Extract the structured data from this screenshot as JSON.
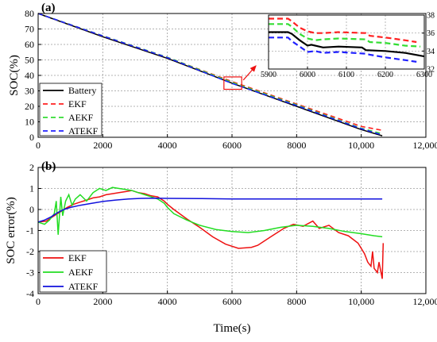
{
  "chart_data": [
    {
      "panel_label": "(a)",
      "type": "line",
      "ylabel": "SOC(%)",
      "xlim": [
        0,
        12000
      ],
      "ylim": [
        0,
        80
      ],
      "x_ticks": [
        "0",
        "2000",
        "4000",
        "6000",
        "8000",
        "10,000",
        "12,000"
      ],
      "y_ticks": [
        "0",
        "10",
        "20",
        "30",
        "40",
        "50",
        "60",
        "70",
        "80"
      ],
      "grid": true,
      "legend_position": "bottom-left",
      "series": [
        {
          "name": "Battery",
          "color": "#000000",
          "dash": "solid",
          "x": [
            0,
            2000,
            4000,
            6000,
            8000,
            10000,
            10650
          ],
          "y": [
            80,
            65,
            51,
            35,
            20,
            5,
            1
          ]
        },
        {
          "name": "EKF",
          "color": "#ff2020",
          "dash": "dashed",
          "x": [
            0,
            2000,
            4000,
            6000,
            8000,
            10000,
            10650
          ],
          "y": [
            80,
            65.5,
            51.6,
            36,
            21.5,
            7,
            4.5
          ]
        },
        {
          "name": "AEKF",
          "color": "#33dd33",
          "dash": "dashed",
          "x": [
            0,
            2000,
            4000,
            6000,
            8000,
            10000,
            10650
          ],
          "y": [
            80,
            65.6,
            51.7,
            35.5,
            21,
            5.8,
            2.3
          ]
        },
        {
          "name": "ATEKF",
          "color": "#2020ff",
          "dash": "dashed",
          "x": [
            0,
            2000,
            4000,
            6000,
            8000,
            10000,
            10650
          ],
          "y": [
            80,
            65.5,
            51.5,
            34.8,
            20.5,
            5.5,
            1.5
          ]
        }
      ],
      "zoom_box": {
        "x": [
          5750,
          6300
        ],
        "y": [
          31,
          39
        ]
      },
      "inset": {
        "xlim": [
          5900,
          6300
        ],
        "ylim": [
          32,
          38
        ],
        "x_ticks": [
          "5900",
          "6000",
          "6100",
          "6200",
          "6300"
        ],
        "y_ticks": [
          "32",
          "34",
          "36",
          "38"
        ],
        "series": [
          {
            "name": "Battery",
            "color": "#000000",
            "dash": "solid",
            "x": [
              5900,
              5950,
              5960,
              5980,
              6000,
              6010,
              6040,
              6080,
              6140,
              6150,
              6200,
              6250,
              6300
            ],
            "y": [
              36.1,
              36.1,
              35.9,
              35.2,
              34.6,
              34.7,
              34.4,
              34.5,
              34.4,
              34.1,
              34.0,
              33.8,
              33.4
            ]
          },
          {
            "name": "EKF",
            "color": "#ff2020",
            "dash": "dashed",
            "x": [
              5900,
              5950,
              5960,
              5980,
              6000,
              6020,
              6040,
              6080,
              6150,
              6160,
              6200,
              6250,
              6280
            ],
            "y": [
              37.6,
              37.6,
              37.3,
              36.6,
              36.2,
              36.0,
              36.0,
              36.1,
              36.0,
              35.7,
              35.5,
              35.2,
              35.0
            ]
          },
          {
            "name": "AEKF",
            "color": "#33dd33",
            "dash": "dashed",
            "x": [
              5900,
              5950,
              5960,
              5980,
              6000,
              6020,
              6040,
              6080,
              6150,
              6160,
              6200,
              6250,
              6290
            ],
            "y": [
              37.0,
              37.0,
              36.7,
              35.9,
              35.4,
              35.2,
              35.3,
              35.4,
              35.3,
              35.0,
              34.9,
              34.6,
              34.5
            ]
          },
          {
            "name": "ATEKF",
            "color": "#2020ff",
            "dash": "dashed",
            "x": [
              5900,
              5950,
              5960,
              5980,
              6000,
              6020,
              6040,
              6080,
              6150,
              6160,
              6200,
              6250,
              6280
            ],
            "y": [
              35.5,
              35.5,
              35.1,
              34.5,
              33.9,
              34.0,
              33.8,
              33.9,
              33.7,
              33.6,
              33.3,
              33.0,
              32.8
            ]
          }
        ]
      }
    },
    {
      "panel_label": "(b)",
      "type": "line",
      "xlabel": "Time(s)",
      "ylabel": "SOC error(%)",
      "xlim": [
        0,
        12000
      ],
      "ylim": [
        -4,
        2
      ],
      "x_ticks": [
        "0",
        "2000",
        "4000",
        "6000",
        "8000",
        "10,000",
        "12,000"
      ],
      "y_ticks": [
        "-4",
        "-3",
        "-2",
        "-1",
        "0",
        "1",
        "2"
      ],
      "grid": true,
      "legend_position": "bottom-left",
      "series": [
        {
          "name": "EKF",
          "color": "#ee1111",
          "dash": "solid",
          "x": [
            0,
            250,
            500,
            700,
            900,
            1100,
            1300,
            1500,
            1700,
            1900,
            2100,
            2300,
            2500,
            2700,
            2900,
            3100,
            3300,
            3500,
            3700,
            3800,
            3900,
            4000,
            4200,
            4600,
            5000,
            5400,
            5800,
            6200,
            6600,
            6800,
            7200,
            7600,
            7900,
            8200,
            8500,
            8700,
            9000,
            9300,
            9600,
            9900,
            10100,
            10200,
            10300,
            10350,
            10400,
            10500,
            10550,
            10650,
            10680
          ],
          "y": [
            -0.6,
            -0.55,
            -0.3,
            -0.1,
            0.1,
            0.25,
            0.35,
            0.45,
            0.55,
            0.6,
            0.7,
            0.75,
            0.8,
            0.85,
            0.9,
            0.8,
            0.75,
            0.65,
            0.6,
            0.5,
            0.4,
            0.25,
            0.0,
            -0.45,
            -0.85,
            -1.3,
            -1.65,
            -1.85,
            -1.8,
            -1.7,
            -1.3,
            -0.9,
            -0.7,
            -0.8,
            -0.55,
            -0.9,
            -0.75,
            -1.1,
            -1.25,
            -1.6,
            -2.1,
            -2.5,
            -2.7,
            -2.0,
            -2.8,
            -3.0,
            -2.5,
            -3.3,
            -1.6
          ]
        },
        {
          "name": "AEKF",
          "color": "#22dd22",
          "dash": "solid",
          "x": [
            0,
            200,
            350,
            500,
            560,
            620,
            700,
            760,
            850,
            950,
            1050,
            1150,
            1300,
            1500,
            1700,
            1900,
            2100,
            2300,
            2500,
            2700,
            2900,
            3100,
            3300,
            3500,
            3700,
            3900,
            4000,
            4200,
            4600,
            5000,
            5500,
            6000,
            6500,
            7000,
            7500,
            8000,
            8500,
            9000,
            9500,
            10000,
            10400,
            10650
          ],
          "y": [
            -0.6,
            -0.7,
            -0.5,
            -0.2,
            0.4,
            -1.2,
            0.6,
            -0.3,
            0.4,
            0.7,
            0.2,
            0.5,
            0.7,
            0.4,
            0.8,
            1.0,
            0.9,
            1.05,
            1.0,
            0.95,
            0.9,
            0.8,
            0.7,
            0.6,
            0.5,
            0.3,
            0.1,
            -0.2,
            -0.5,
            -0.75,
            -0.95,
            -1.05,
            -1.1,
            -1.0,
            -0.85,
            -0.75,
            -0.8,
            -0.9,
            -1.05,
            -1.15,
            -1.25,
            -1.3
          ]
        },
        {
          "name": "ATEKF",
          "color": "#1111dd",
          "dash": "solid",
          "x": [
            0,
            200,
            400,
            600,
            800,
            1000,
            1300,
            1600,
            2000,
            2400,
            2800,
            3200,
            3600,
            4000,
            5000,
            6000,
            7000,
            8000,
            9000,
            10000,
            10650
          ],
          "y": [
            -0.6,
            -0.5,
            -0.35,
            -0.15,
            0.0,
            0.1,
            0.2,
            0.28,
            0.38,
            0.45,
            0.5,
            0.53,
            0.54,
            0.53,
            0.52,
            0.5,
            0.5,
            0.5,
            0.5,
            0.5,
            0.5
          ]
        }
      ]
    }
  ]
}
